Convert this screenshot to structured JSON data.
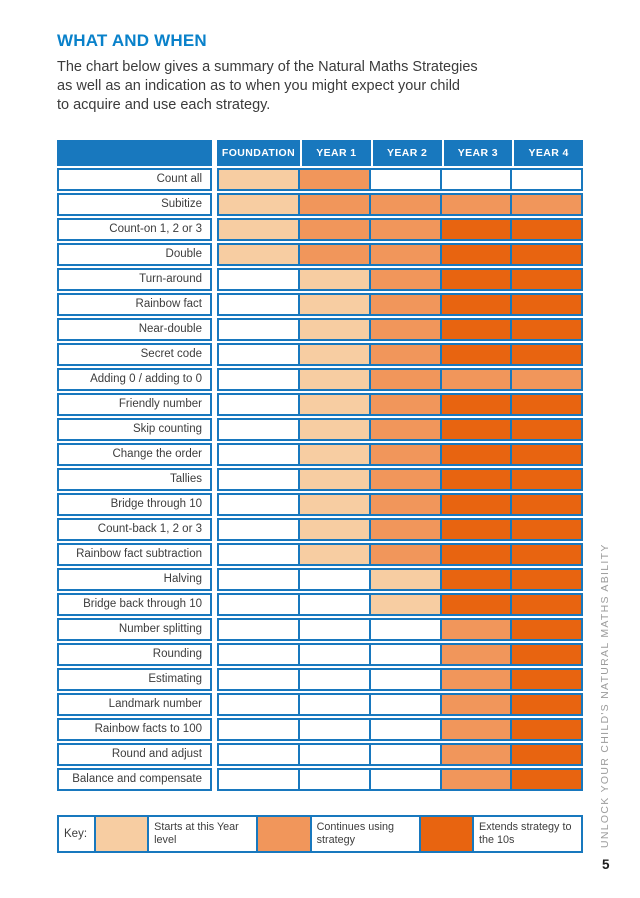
{
  "header": {
    "title": "WHAT AND WHEN",
    "intro_lines": [
      "The chart below gives a summary of the Natural Maths Strategies",
      "as well as an indication as to when you might expect your child",
      "to acquire and use each strategy."
    ]
  },
  "colors": {
    "blue": "#1878BE",
    "title_blue": "#0981CA",
    "starts": "#F7CDA2",
    "continues": "#F1965B",
    "extends": "#E86410",
    "none": "#FFFFFF",
    "side_text_gray": "#9C9C9C"
  },
  "key": {
    "label": "Key:"
  },
  "sidebar": {
    "vertical_text": "UNLOCK YOUR CHILD'S NATURAL MATHS ABILITY"
  },
  "footer": {
    "page_number": "5"
  },
  "chart_data": {
    "type": "table",
    "title": "WHAT AND WHEN",
    "columns": [
      "FOUNDATION",
      "YEAR 1",
      "YEAR 2",
      "YEAR 3",
      "YEAR 4"
    ],
    "legend": [
      {
        "key": "starts",
        "label": "Starts at this Year level"
      },
      {
        "key": "continues",
        "label": "Continues using strategy"
      },
      {
        "key": "extends",
        "label": "Extends strategy to the 10s"
      }
    ],
    "rows": [
      {
        "label": "Count all",
        "cells": [
          "starts",
          "continues",
          "none",
          "none",
          "none"
        ]
      },
      {
        "label": "Subitize",
        "cells": [
          "starts",
          "continues",
          "continues",
          "continues",
          "continues"
        ]
      },
      {
        "label": "Count-on 1, 2 or 3",
        "cells": [
          "starts",
          "continues",
          "continues",
          "extends",
          "extends"
        ]
      },
      {
        "label": "Double",
        "cells": [
          "starts",
          "continues",
          "continues",
          "extends",
          "extends"
        ]
      },
      {
        "label": "Turn-around",
        "cells": [
          "none",
          "starts",
          "continues",
          "extends",
          "extends"
        ]
      },
      {
        "label": "Rainbow fact",
        "cells": [
          "none",
          "starts",
          "continues",
          "extends",
          "extends"
        ]
      },
      {
        "label": "Near-double",
        "cells": [
          "none",
          "starts",
          "continues",
          "extends",
          "extends"
        ]
      },
      {
        "label": "Secret code",
        "cells": [
          "none",
          "starts",
          "continues",
          "extends",
          "extends"
        ]
      },
      {
        "label": "Adding 0 / adding to 0",
        "cells": [
          "none",
          "starts",
          "continues",
          "continues",
          "continues"
        ]
      },
      {
        "label": "Friendly number",
        "cells": [
          "none",
          "starts",
          "continues",
          "extends",
          "extends"
        ]
      },
      {
        "label": "Skip counting",
        "cells": [
          "none",
          "starts",
          "continues",
          "extends",
          "extends"
        ]
      },
      {
        "label": "Change the order",
        "cells": [
          "none",
          "starts",
          "continues",
          "extends",
          "extends"
        ]
      },
      {
        "label": "Tallies",
        "cells": [
          "none",
          "starts",
          "continues",
          "extends",
          "extends"
        ]
      },
      {
        "label": "Bridge through 10",
        "cells": [
          "none",
          "starts",
          "continues",
          "extends",
          "extends"
        ]
      },
      {
        "label": "Count-back 1, 2 or 3",
        "cells": [
          "none",
          "starts",
          "continues",
          "extends",
          "extends"
        ]
      },
      {
        "label": "Rainbow fact subtraction",
        "cells": [
          "none",
          "starts",
          "continues",
          "extends",
          "extends"
        ]
      },
      {
        "label": "Halving",
        "cells": [
          "none",
          "none",
          "starts",
          "extends",
          "extends"
        ]
      },
      {
        "label": "Bridge back through 10",
        "cells": [
          "none",
          "none",
          "starts",
          "extends",
          "extends"
        ]
      },
      {
        "label": "Number splitting",
        "cells": [
          "none",
          "none",
          "none",
          "continues",
          "extends"
        ]
      },
      {
        "label": "Rounding",
        "cells": [
          "none",
          "none",
          "none",
          "continues",
          "extends"
        ]
      },
      {
        "label": "Estimating",
        "cells": [
          "none",
          "none",
          "none",
          "continues",
          "extends"
        ]
      },
      {
        "label": "Landmark number",
        "cells": [
          "none",
          "none",
          "none",
          "continues",
          "extends"
        ]
      },
      {
        "label": "Rainbow facts to 100",
        "cells": [
          "none",
          "none",
          "none",
          "continues",
          "extends"
        ]
      },
      {
        "label": "Round and adjust",
        "cells": [
          "none",
          "none",
          "none",
          "continues",
          "extends"
        ]
      },
      {
        "label": "Balance and compensate",
        "cells": [
          "none",
          "none",
          "none",
          "continues",
          "extends"
        ]
      }
    ]
  }
}
